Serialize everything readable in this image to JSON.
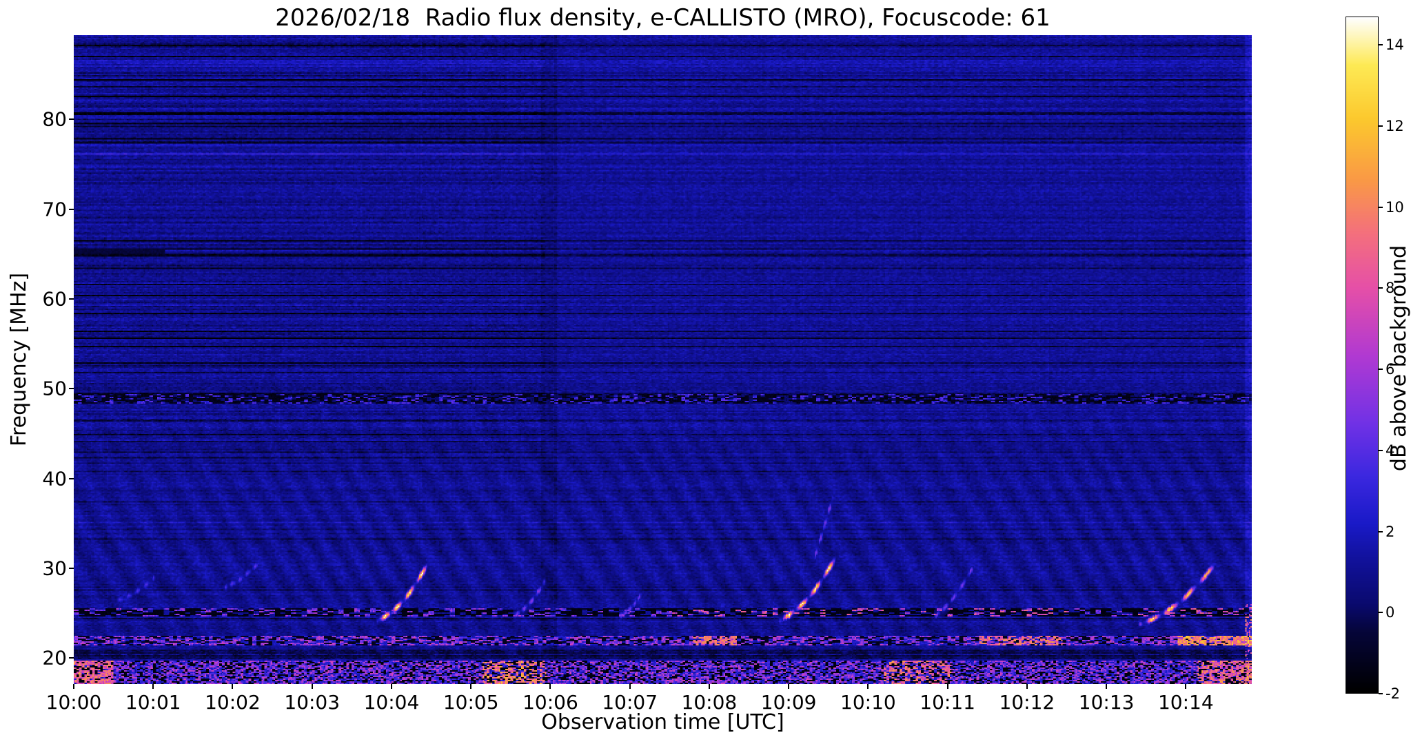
{
  "figure": {
    "title": "2026/02/18  Radio flux density, e-CALLISTO (MRO), Focuscode: 61",
    "xlabel": "Observation time [UTC]",
    "ylabel": "Frequency [MHz]",
    "colorbar_label": "dB above background"
  },
  "chart_data": {
    "type": "heatmap",
    "subtype": "radio-spectrogram",
    "title": "2026/02/18  Radio flux density, e-CALLISTO (MRO), Focuscode: 61",
    "xlabel": "Observation time [UTC]",
    "ylabel": "Frequency [MHz]",
    "x_ticks": [
      "10:00",
      "10:01",
      "10:02",
      "10:03",
      "10:04",
      "10:05",
      "10:06",
      "10:07",
      "10:08",
      "10:09",
      "10:10",
      "10:11",
      "10:12",
      "10:13",
      "10:14"
    ],
    "x_range_minutes": [
      0,
      14.83
    ],
    "y_ticks": [
      20,
      30,
      40,
      50,
      60,
      70,
      80
    ],
    "y_range_mhz": [
      17.1,
      89.4
    ],
    "background_level_db": 1.1,
    "colorbar": {
      "label": "dB above background",
      "ticks": [
        -2,
        0,
        2,
        4,
        6,
        8,
        10,
        12,
        14
      ],
      "vmin": -2,
      "vmax": 14.7,
      "colormap": "gnuplot2-like (black-blue-violet-magenta-orange-yellow-white)",
      "stops": [
        [
          0.0,
          "#000000"
        ],
        [
          0.09,
          "#06063a"
        ],
        [
          0.13,
          "#0a0a6e"
        ],
        [
          0.2,
          "#12129e"
        ],
        [
          0.25,
          "#1a1ac8"
        ],
        [
          0.32,
          "#3c28e0"
        ],
        [
          0.4,
          "#7232e6"
        ],
        [
          0.5,
          "#b23ad2"
        ],
        [
          0.6,
          "#e650a8"
        ],
        [
          0.68,
          "#f4707e"
        ],
        [
          0.76,
          "#fa9a46"
        ],
        [
          0.85,
          "#fcc92e"
        ],
        [
          0.93,
          "#feea55"
        ],
        [
          1.0,
          "#ffffff"
        ]
      ]
    },
    "rfi_bands": [
      {
        "center_mhz": 48.9,
        "width_mhz": 1.0,
        "style": "dark-dashed"
      },
      {
        "center_mhz": 25.05,
        "width_mhz": 0.9,
        "style": "dark-with-bright"
      },
      {
        "center_mhz": 21.9,
        "width_mhz": 1.1,
        "style": "mixed-bright"
      },
      {
        "center_mhz": 18.4,
        "width_mhz": 2.5,
        "style": "busy-bright"
      },
      {
        "center_mhz": 65.4,
        "width_mhz": 0.66,
        "style": "dark-line",
        "t_start": 0,
        "t_end": 1.15
      }
    ],
    "bursts": [
      {
        "t_start": 0.55,
        "t_end": 1.0,
        "f_start": 26.5,
        "f_end": 29.0,
        "peak_db": 3.2,
        "curve": -0.3
      },
      {
        "t_start": 1.9,
        "t_end": 2.3,
        "f_start": 28.0,
        "f_end": 30.5,
        "peak_db": 3.5,
        "curve": -0.3
      },
      {
        "t_start": 3.82,
        "t_end": 4.45,
        "f_start": 24.2,
        "f_end": 30.6,
        "peak_db": 13,
        "curve": -1.0
      },
      {
        "t_start": 5.55,
        "t_end": 5.92,
        "f_start": 24.8,
        "f_end": 28.6,
        "peak_db": 4.5,
        "curve": -0.5
      },
      {
        "t_start": 6.88,
        "t_end": 7.12,
        "f_start": 24.8,
        "f_end": 27.0,
        "peak_db": 4.0,
        "curve": -0.3
      },
      {
        "t_start": 8.88,
        "t_end": 9.58,
        "f_start": 24.2,
        "f_end": 31.2,
        "peak_db": 13,
        "curve": -1.0
      },
      {
        "t_start": 9.32,
        "t_end": 9.55,
        "f_start": 31.2,
        "f_end": 38.0,
        "peak_db": 4.2,
        "curve": 0
      },
      {
        "t_start": 10.85,
        "t_end": 11.3,
        "f_start": 24.8,
        "f_end": 30.0,
        "peak_db": 4.2,
        "curve": -0.5
      },
      {
        "t_start": 13.42,
        "t_end": 14.35,
        "f_start": 23.8,
        "f_end": 30.4,
        "peak_db": 12,
        "curve": -1.0
      }
    ]
  }
}
